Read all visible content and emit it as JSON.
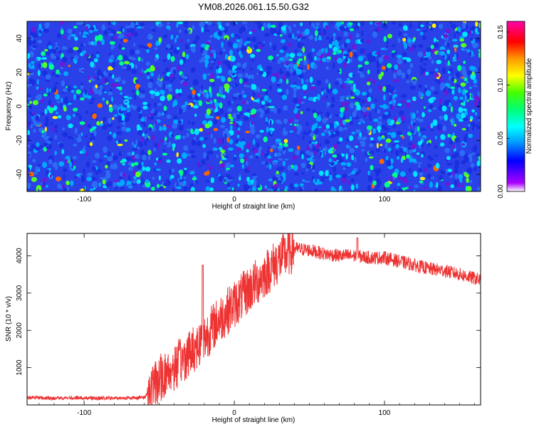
{
  "title": "YM08.2026.061.15.50.G32",
  "chart_data": [
    {
      "type": "heatmap",
      "xlabel": "Height of straight line (km)",
      "ylabel": "Frequency (Hz)",
      "xlim": [
        -138,
        164
      ],
      "ylim": [
        -50,
        50
      ],
      "x_ticks": [
        -100,
        0,
        100
      ],
      "y_ticks": [
        -40,
        -20,
        0,
        20,
        40
      ],
      "colorbar": {
        "label": "Normalized spectral amplitude",
        "range": [
          0,
          0.16
        ],
        "ticks": [
          "0.00",
          "0.05",
          "0.10",
          "0.15"
        ],
        "tick_values": [
          0,
          0.05,
          0.1,
          0.15
        ],
        "colors": [
          "#ffffff",
          "#aa00ff",
          "#0000ff",
          "#00aaff",
          "#00ffff",
          "#00ff77",
          "#44ff00",
          "#ffff00",
          "#ff9900",
          "#ff0000",
          "#ff00aa"
        ]
      },
      "grid": false
    },
    {
      "type": "line",
      "xlabel": "Height of straight line (km)",
      "ylabel": "SNR (10 * v/v)",
      "xlim": [
        -138,
        164
      ],
      "ylim": [
        0,
        4600
      ],
      "x_ticks": [
        -100,
        0,
        100
      ],
      "y_ticks": [
        1000,
        2000,
        3000,
        4000
      ],
      "line_color": "#ee3333",
      "x": [
        -138,
        -120,
        -100,
        -80,
        -60,
        -58,
        -50,
        -40,
        -30,
        -22,
        -20,
        -10,
        0,
        10,
        20,
        30,
        40,
        50,
        60,
        70,
        80,
        90,
        100,
        110,
        120,
        130,
        140,
        150,
        164
      ],
      "y": [
        200,
        180,
        190,
        180,
        200,
        300,
        700,
        1000,
        1400,
        1700,
        1800,
        2300,
        2700,
        3100,
        3500,
        3900,
        4200,
        4150,
        4050,
        4000,
        4000,
        3950,
        3950,
        3850,
        3750,
        3650,
        3600,
        3500,
        3350
      ],
      "grid": false
    }
  ]
}
